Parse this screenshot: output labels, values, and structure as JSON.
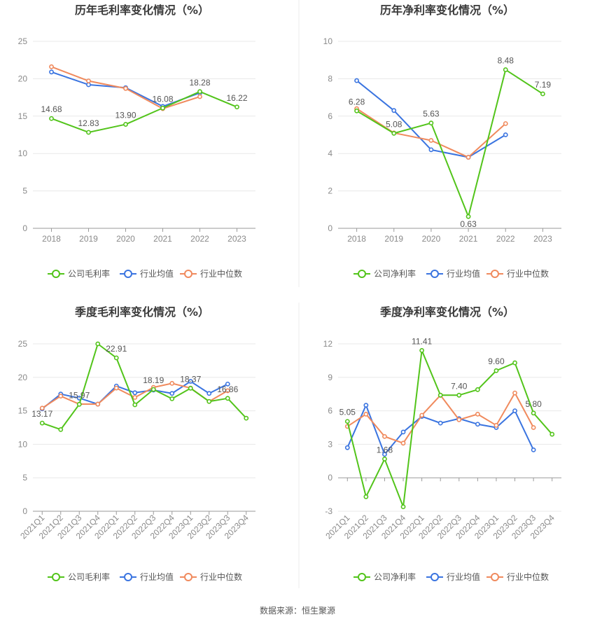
{
  "source": "数据来源：恒生聚源",
  "chart_data": [
    {
      "id": "annual-gross",
      "type": "line",
      "title": "历年毛利率变化情况（%）",
      "categories": [
        "2018",
        "2019",
        "2020",
        "2021",
        "2022",
        "2023"
      ],
      "ylim": [
        0,
        25
      ],
      "yticks": [
        0,
        5,
        10,
        15,
        20,
        25
      ],
      "series": [
        {
          "name": "公司毛利率",
          "color": "#52c41a",
          "labels": true,
          "values": [
            14.68,
            12.83,
            13.9,
            16.08,
            18.28,
            16.22
          ],
          "value_labels": [
            "14.68",
            "12.83",
            "13.90",
            "16.08",
            "18.28",
            "16.22"
          ]
        },
        {
          "name": "行业均值",
          "color": "#3a74e0",
          "labels": false,
          "values": [
            20.9,
            19.2,
            18.8,
            16.3,
            18.1,
            null
          ]
        },
        {
          "name": "行业中位数",
          "color": "#f08a5d",
          "labels": false,
          "values": [
            21.6,
            19.7,
            18.7,
            16.0,
            17.6,
            null
          ]
        }
      ]
    },
    {
      "id": "annual-net",
      "type": "line",
      "title": "历年净利率变化情况（%）",
      "categories": [
        "2018",
        "2019",
        "2020",
        "2021",
        "2022",
        "2023"
      ],
      "ylim": [
        0,
        10
      ],
      "yticks": [
        0,
        2,
        4,
        6,
        8,
        10
      ],
      "series": [
        {
          "name": "公司净利率",
          "color": "#52c41a",
          "labels": true,
          "values": [
            6.28,
            5.08,
            5.63,
            0.63,
            8.48,
            7.19
          ],
          "value_labels": [
            "6.28",
            "5.08",
            "5.63",
            "0.63",
            "8.48",
            "7.19"
          ]
        },
        {
          "name": "行业均值",
          "color": "#3a74e0",
          "labels": false,
          "values": [
            7.9,
            6.3,
            4.2,
            3.8,
            5.0,
            null
          ]
        },
        {
          "name": "行业中位数",
          "color": "#f08a5d",
          "labels": false,
          "values": [
            6.4,
            5.1,
            4.7,
            3.8,
            5.6,
            null
          ]
        }
      ]
    },
    {
      "id": "quarterly-gross",
      "type": "line",
      "title": "季度毛利率变化情况（%）",
      "categories": [
        "2021Q1",
        "2021Q2",
        "2021Q3",
        "2021Q4",
        "2022Q1",
        "2022Q2",
        "2022Q3",
        "2022Q4",
        "2023Q1",
        "2023Q2",
        "2023Q3",
        "2023Q4"
      ],
      "ylim": [
        0,
        25
      ],
      "yticks": [
        0,
        5,
        10,
        15,
        20,
        25
      ],
      "series": [
        {
          "name": "公司毛利率",
          "color": "#52c41a",
          "labels": true,
          "values": [
            13.17,
            12.2,
            15.97,
            25.0,
            22.91,
            15.9,
            18.19,
            16.8,
            18.37,
            16.4,
            16.86,
            13.9
          ],
          "value_labels": [
            "13.17",
            null,
            "15.97",
            null,
            "22.91",
            null,
            "18.19",
            null,
            "18.37",
            null,
            "16.86",
            null
          ]
        },
        {
          "name": "行业均值",
          "color": "#3a74e0",
          "labels": false,
          "values": [
            15.3,
            17.5,
            16.9,
            16.0,
            18.7,
            17.7,
            18.1,
            17.6,
            19.4,
            17.6,
            19.0,
            null
          ]
        },
        {
          "name": "行业中位数",
          "color": "#f08a5d",
          "labels": false,
          "values": [
            15.4,
            17.2,
            16.0,
            16.0,
            18.4,
            17.0,
            18.5,
            19.1,
            18.4,
            16.4,
            18.0,
            null
          ]
        }
      ]
    },
    {
      "id": "quarterly-net",
      "type": "line",
      "title": "季度净利率变化情况（%）",
      "categories": [
        "2021Q1",
        "2021Q2",
        "2021Q3",
        "2021Q4",
        "2022Q1",
        "2022Q2",
        "2022Q3",
        "2022Q4",
        "2023Q1",
        "2023Q2",
        "2023Q3",
        "2023Q4"
      ],
      "ylim": [
        -3,
        12
      ],
      "yticks": [
        -3,
        0,
        3,
        6,
        9,
        12
      ],
      "series": [
        {
          "name": "公司净利率",
          "color": "#52c41a",
          "labels": true,
          "values": [
            5.05,
            -1.7,
            1.68,
            -2.6,
            11.41,
            7.4,
            7.4,
            7.9,
            9.6,
            10.3,
            5.8,
            3.9
          ],
          "value_labels": [
            "5.05",
            null,
            "1.68",
            null,
            "11.41",
            null,
            "7.40",
            null,
            "9.60",
            null,
            "5.80",
            null
          ]
        },
        {
          "name": "行业均值",
          "color": "#3a74e0",
          "labels": false,
          "values": [
            2.7,
            6.5,
            2.1,
            4.1,
            5.5,
            4.9,
            5.3,
            4.8,
            4.5,
            6.0,
            2.5,
            null
          ]
        },
        {
          "name": "行业中位数",
          "color": "#f08a5d",
          "labels": false,
          "values": [
            4.6,
            5.7,
            3.7,
            3.1,
            5.6,
            7.4,
            5.2,
            5.7,
            4.7,
            7.6,
            4.5,
            null
          ]
        }
      ]
    }
  ]
}
